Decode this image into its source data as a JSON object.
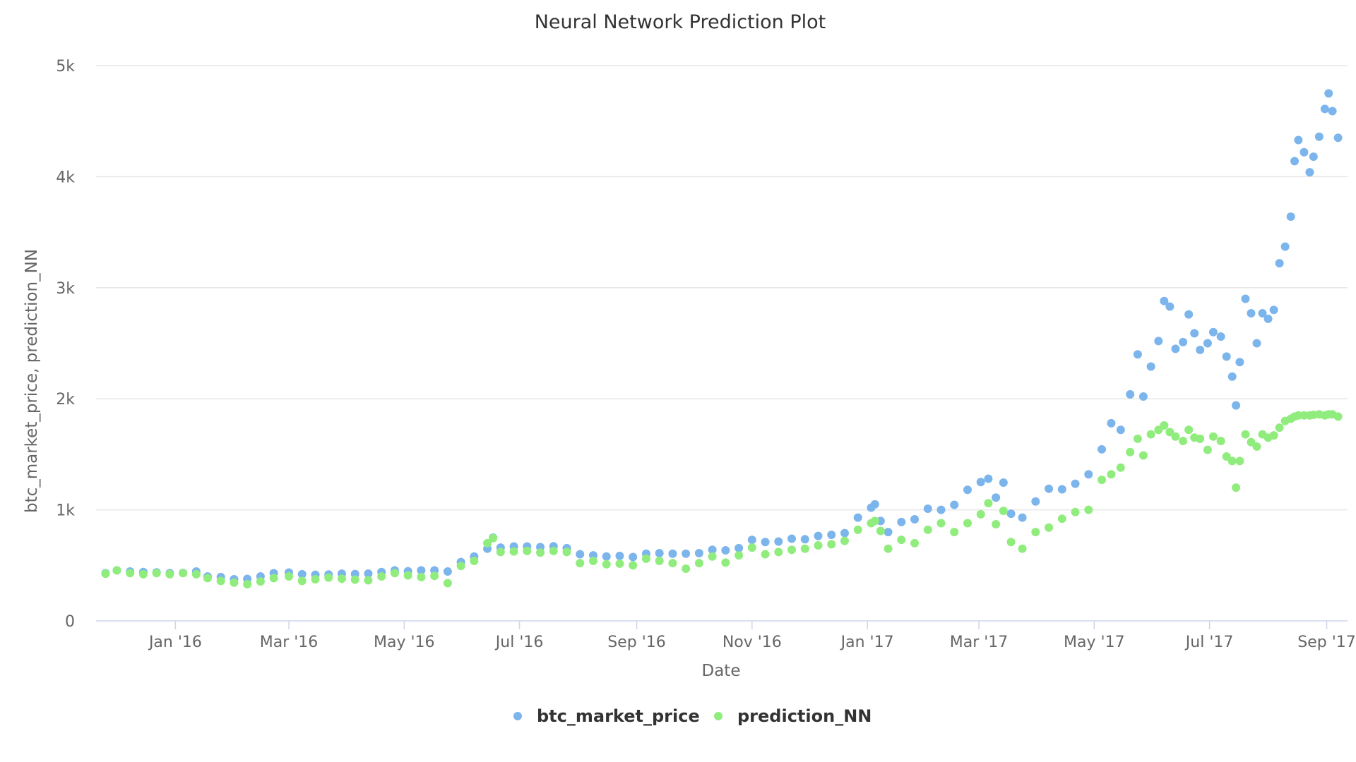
{
  "chart_data": {
    "type": "scatter",
    "title": "Neural Network Prediction Plot",
    "xlabel": "Date",
    "ylabel": "btc_market_price, prediction_NN",
    "x_range": [
      "2015-11-20",
      "2017-09-12"
    ],
    "ylim": [
      0,
      5000
    ],
    "y_ticks": [
      0,
      1000,
      2000,
      3000,
      4000,
      5000
    ],
    "y_tick_labels": [
      "0",
      "1k",
      "2k",
      "3k",
      "4k",
      "5k"
    ],
    "x_ticks": [
      "2016-01-01",
      "2016-03-01",
      "2016-05-01",
      "2016-07-01",
      "2016-09-01",
      "2016-11-01",
      "2017-01-01",
      "2017-03-01",
      "2017-05-01",
      "2017-07-01",
      "2017-09-01"
    ],
    "x_tick_labels": [
      "Jan '16",
      "Mar '16",
      "May '16",
      "Jul '16",
      "Sep '16",
      "Nov '16",
      "Jan '17",
      "Mar '17",
      "May '17",
      "Jul '17",
      "Sep '17"
    ],
    "grid": true,
    "legend_position": "bottom-center",
    "series": [
      {
        "name": "btc_market_price",
        "color": "#7cb5ec",
        "points": [
          [
            "2015-11-25",
            430
          ],
          [
            "2015-12-01",
            455
          ],
          [
            "2015-12-08",
            445
          ],
          [
            "2015-12-15",
            440
          ],
          [
            "2015-12-22",
            437
          ],
          [
            "2015-12-29",
            430
          ],
          [
            "2016-01-05",
            432
          ],
          [
            "2016-01-12",
            445
          ],
          [
            "2016-01-18",
            400
          ],
          [
            "2016-01-25",
            395
          ],
          [
            "2016-02-01",
            375
          ],
          [
            "2016-02-08",
            378
          ],
          [
            "2016-02-15",
            400
          ],
          [
            "2016-02-22",
            430
          ],
          [
            "2016-03-01",
            435
          ],
          [
            "2016-03-08",
            420
          ],
          [
            "2016-03-15",
            415
          ],
          [
            "2016-03-22",
            418
          ],
          [
            "2016-03-29",
            425
          ],
          [
            "2016-04-05",
            422
          ],
          [
            "2016-04-12",
            426
          ],
          [
            "2016-04-19",
            440
          ],
          [
            "2016-04-26",
            455
          ],
          [
            "2016-05-03",
            447
          ],
          [
            "2016-05-10",
            455
          ],
          [
            "2016-05-17",
            455
          ],
          [
            "2016-05-24",
            445
          ],
          [
            "2016-05-31",
            530
          ],
          [
            "2016-06-07",
            580
          ],
          [
            "2016-06-14",
            650
          ],
          [
            "2016-06-17",
            750
          ],
          [
            "2016-06-21",
            660
          ],
          [
            "2016-06-28",
            670
          ],
          [
            "2016-07-05",
            670
          ],
          [
            "2016-07-12",
            665
          ],
          [
            "2016-07-19",
            672
          ],
          [
            "2016-07-26",
            655
          ],
          [
            "2016-08-02",
            600
          ],
          [
            "2016-08-09",
            590
          ],
          [
            "2016-08-16",
            580
          ],
          [
            "2016-08-23",
            585
          ],
          [
            "2016-08-30",
            575
          ],
          [
            "2016-09-06",
            605
          ],
          [
            "2016-09-13",
            610
          ],
          [
            "2016-09-20",
            605
          ],
          [
            "2016-09-27",
            605
          ],
          [
            "2016-10-04",
            610
          ],
          [
            "2016-10-11",
            640
          ],
          [
            "2016-10-18",
            635
          ],
          [
            "2016-10-25",
            655
          ],
          [
            "2016-11-01",
            730
          ],
          [
            "2016-11-08",
            710
          ],
          [
            "2016-11-15",
            715
          ],
          [
            "2016-11-22",
            740
          ],
          [
            "2016-11-29",
            735
          ],
          [
            "2016-12-06",
            765
          ],
          [
            "2016-12-13",
            775
          ],
          [
            "2016-12-20",
            790
          ],
          [
            "2016-12-27",
            930
          ],
          [
            "2017-01-03",
            1020
          ],
          [
            "2017-01-05",
            1050
          ],
          [
            "2017-01-08",
            900
          ],
          [
            "2017-01-12",
            800
          ],
          [
            "2017-01-19",
            890
          ],
          [
            "2017-01-26",
            915
          ],
          [
            "2017-02-02",
            1010
          ],
          [
            "2017-02-09",
            1000
          ],
          [
            "2017-02-16",
            1045
          ],
          [
            "2017-02-23",
            1180
          ],
          [
            "2017-03-02",
            1250
          ],
          [
            "2017-03-06",
            1280
          ],
          [
            "2017-03-10",
            1110
          ],
          [
            "2017-03-14",
            1245
          ],
          [
            "2017-03-18",
            965
          ],
          [
            "2017-03-24",
            930
          ],
          [
            "2017-03-31",
            1075
          ],
          [
            "2017-04-07",
            1190
          ],
          [
            "2017-04-14",
            1185
          ],
          [
            "2017-04-21",
            1235
          ],
          [
            "2017-04-28",
            1320
          ],
          [
            "2017-05-05",
            1545
          ],
          [
            "2017-05-10",
            1780
          ],
          [
            "2017-05-15",
            1720
          ],
          [
            "2017-05-20",
            2040
          ],
          [
            "2017-05-24",
            2400
          ],
          [
            "2017-05-27",
            2020
          ],
          [
            "2017-05-31",
            2290
          ],
          [
            "2017-06-04",
            2520
          ],
          [
            "2017-06-07",
            2880
          ],
          [
            "2017-06-10",
            2830
          ],
          [
            "2017-06-13",
            2450
          ],
          [
            "2017-06-17",
            2510
          ],
          [
            "2017-06-20",
            2760
          ],
          [
            "2017-06-23",
            2590
          ],
          [
            "2017-06-26",
            2440
          ],
          [
            "2017-06-30",
            2500
          ],
          [
            "2017-07-03",
            2600
          ],
          [
            "2017-07-07",
            2560
          ],
          [
            "2017-07-10",
            2380
          ],
          [
            "2017-07-13",
            2200
          ],
          [
            "2017-07-15",
            1940
          ],
          [
            "2017-07-17",
            2330
          ],
          [
            "2017-07-20",
            2900
          ],
          [
            "2017-07-23",
            2770
          ],
          [
            "2017-07-26",
            2500
          ],
          [
            "2017-07-29",
            2770
          ],
          [
            "2017-08-01",
            2720
          ],
          [
            "2017-08-04",
            2800
          ],
          [
            "2017-08-07",
            3220
          ],
          [
            "2017-08-10",
            3370
          ],
          [
            "2017-08-13",
            3640
          ],
          [
            "2017-08-15",
            4140
          ],
          [
            "2017-08-17",
            4330
          ],
          [
            "2017-08-20",
            4220
          ],
          [
            "2017-08-23",
            4040
          ],
          [
            "2017-08-25",
            4180
          ],
          [
            "2017-08-28",
            4360
          ],
          [
            "2017-08-31",
            4610
          ],
          [
            "2017-09-02",
            4750
          ],
          [
            "2017-09-04",
            4590
          ],
          [
            "2017-09-07",
            4350
          ]
        ]
      },
      {
        "name": "prediction_NN",
        "color": "#90ed7d",
        "points": [
          [
            "2015-11-25",
            425
          ],
          [
            "2015-12-01",
            455
          ],
          [
            "2015-12-08",
            430
          ],
          [
            "2015-12-15",
            420
          ],
          [
            "2015-12-22",
            430
          ],
          [
            "2015-12-29",
            420
          ],
          [
            "2016-01-05",
            430
          ],
          [
            "2016-01-12",
            420
          ],
          [
            "2016-01-18",
            385
          ],
          [
            "2016-01-25",
            360
          ],
          [
            "2016-02-01",
            345
          ],
          [
            "2016-02-08",
            330
          ],
          [
            "2016-02-15",
            355
          ],
          [
            "2016-02-22",
            385
          ],
          [
            "2016-03-01",
            400
          ],
          [
            "2016-03-08",
            360
          ],
          [
            "2016-03-15",
            375
          ],
          [
            "2016-03-22",
            390
          ],
          [
            "2016-03-29",
            380
          ],
          [
            "2016-04-05",
            372
          ],
          [
            "2016-04-12",
            365
          ],
          [
            "2016-04-19",
            400
          ],
          [
            "2016-04-26",
            430
          ],
          [
            "2016-05-03",
            410
          ],
          [
            "2016-05-10",
            395
          ],
          [
            "2016-05-17",
            405
          ],
          [
            "2016-05-24",
            340
          ],
          [
            "2016-05-31",
            495
          ],
          [
            "2016-06-07",
            540
          ],
          [
            "2016-06-14",
            700
          ],
          [
            "2016-06-17",
            745
          ],
          [
            "2016-06-21",
            620
          ],
          [
            "2016-06-28",
            625
          ],
          [
            "2016-07-05",
            630
          ],
          [
            "2016-07-12",
            615
          ],
          [
            "2016-07-19",
            630
          ],
          [
            "2016-07-26",
            620
          ],
          [
            "2016-08-02",
            520
          ],
          [
            "2016-08-09",
            540
          ],
          [
            "2016-08-16",
            510
          ],
          [
            "2016-08-23",
            515
          ],
          [
            "2016-08-30",
            500
          ],
          [
            "2016-09-06",
            560
          ],
          [
            "2016-09-13",
            540
          ],
          [
            "2016-09-20",
            520
          ],
          [
            "2016-09-27",
            470
          ],
          [
            "2016-10-04",
            520
          ],
          [
            "2016-10-11",
            580
          ],
          [
            "2016-10-18",
            525
          ],
          [
            "2016-10-25",
            590
          ],
          [
            "2016-11-01",
            660
          ],
          [
            "2016-11-08",
            600
          ],
          [
            "2016-11-15",
            620
          ],
          [
            "2016-11-22",
            640
          ],
          [
            "2016-11-29",
            650
          ],
          [
            "2016-12-06",
            680
          ],
          [
            "2016-12-13",
            690
          ],
          [
            "2016-12-20",
            720
          ],
          [
            "2016-12-27",
            820
          ],
          [
            "2017-01-03",
            880
          ],
          [
            "2017-01-05",
            900
          ],
          [
            "2017-01-08",
            810
          ],
          [
            "2017-01-12",
            650
          ],
          [
            "2017-01-19",
            730
          ],
          [
            "2017-01-26",
            700
          ],
          [
            "2017-02-02",
            820
          ],
          [
            "2017-02-09",
            880
          ],
          [
            "2017-02-16",
            800
          ],
          [
            "2017-02-23",
            880
          ],
          [
            "2017-03-02",
            960
          ],
          [
            "2017-03-06",
            1060
          ],
          [
            "2017-03-10",
            870
          ],
          [
            "2017-03-14",
            990
          ],
          [
            "2017-03-18",
            710
          ],
          [
            "2017-03-24",
            650
          ],
          [
            "2017-03-31",
            800
          ],
          [
            "2017-04-07",
            840
          ],
          [
            "2017-04-14",
            920
          ],
          [
            "2017-04-21",
            980
          ],
          [
            "2017-04-28",
            1000
          ],
          [
            "2017-05-05",
            1270
          ],
          [
            "2017-05-10",
            1320
          ],
          [
            "2017-05-15",
            1380
          ],
          [
            "2017-05-20",
            1520
          ],
          [
            "2017-05-24",
            1640
          ],
          [
            "2017-05-27",
            1490
          ],
          [
            "2017-05-31",
            1680
          ],
          [
            "2017-06-04",
            1720
          ],
          [
            "2017-06-07",
            1760
          ],
          [
            "2017-06-10",
            1700
          ],
          [
            "2017-06-13",
            1660
          ],
          [
            "2017-06-17",
            1620
          ],
          [
            "2017-06-20",
            1720
          ],
          [
            "2017-06-23",
            1650
          ],
          [
            "2017-06-26",
            1640
          ],
          [
            "2017-06-30",
            1540
          ],
          [
            "2017-07-03",
            1660
          ],
          [
            "2017-07-07",
            1620
          ],
          [
            "2017-07-10",
            1480
          ],
          [
            "2017-07-13",
            1440
          ],
          [
            "2017-07-15",
            1200
          ],
          [
            "2017-07-17",
            1440
          ],
          [
            "2017-07-20",
            1680
          ],
          [
            "2017-07-23",
            1610
          ],
          [
            "2017-07-26",
            1570
          ],
          [
            "2017-07-29",
            1680
          ],
          [
            "2017-08-01",
            1650
          ],
          [
            "2017-08-04",
            1670
          ],
          [
            "2017-08-07",
            1740
          ],
          [
            "2017-08-10",
            1800
          ],
          [
            "2017-08-13",
            1820
          ],
          [
            "2017-08-15",
            1840
          ],
          [
            "2017-08-17",
            1850
          ],
          [
            "2017-08-20",
            1850
          ],
          [
            "2017-08-23",
            1850
          ],
          [
            "2017-08-25",
            1855
          ],
          [
            "2017-08-28",
            1860
          ],
          [
            "2017-08-31",
            1850
          ],
          [
            "2017-09-02",
            1860
          ],
          [
            "2017-09-04",
            1860
          ],
          [
            "2017-09-07",
            1840
          ]
        ]
      }
    ]
  }
}
